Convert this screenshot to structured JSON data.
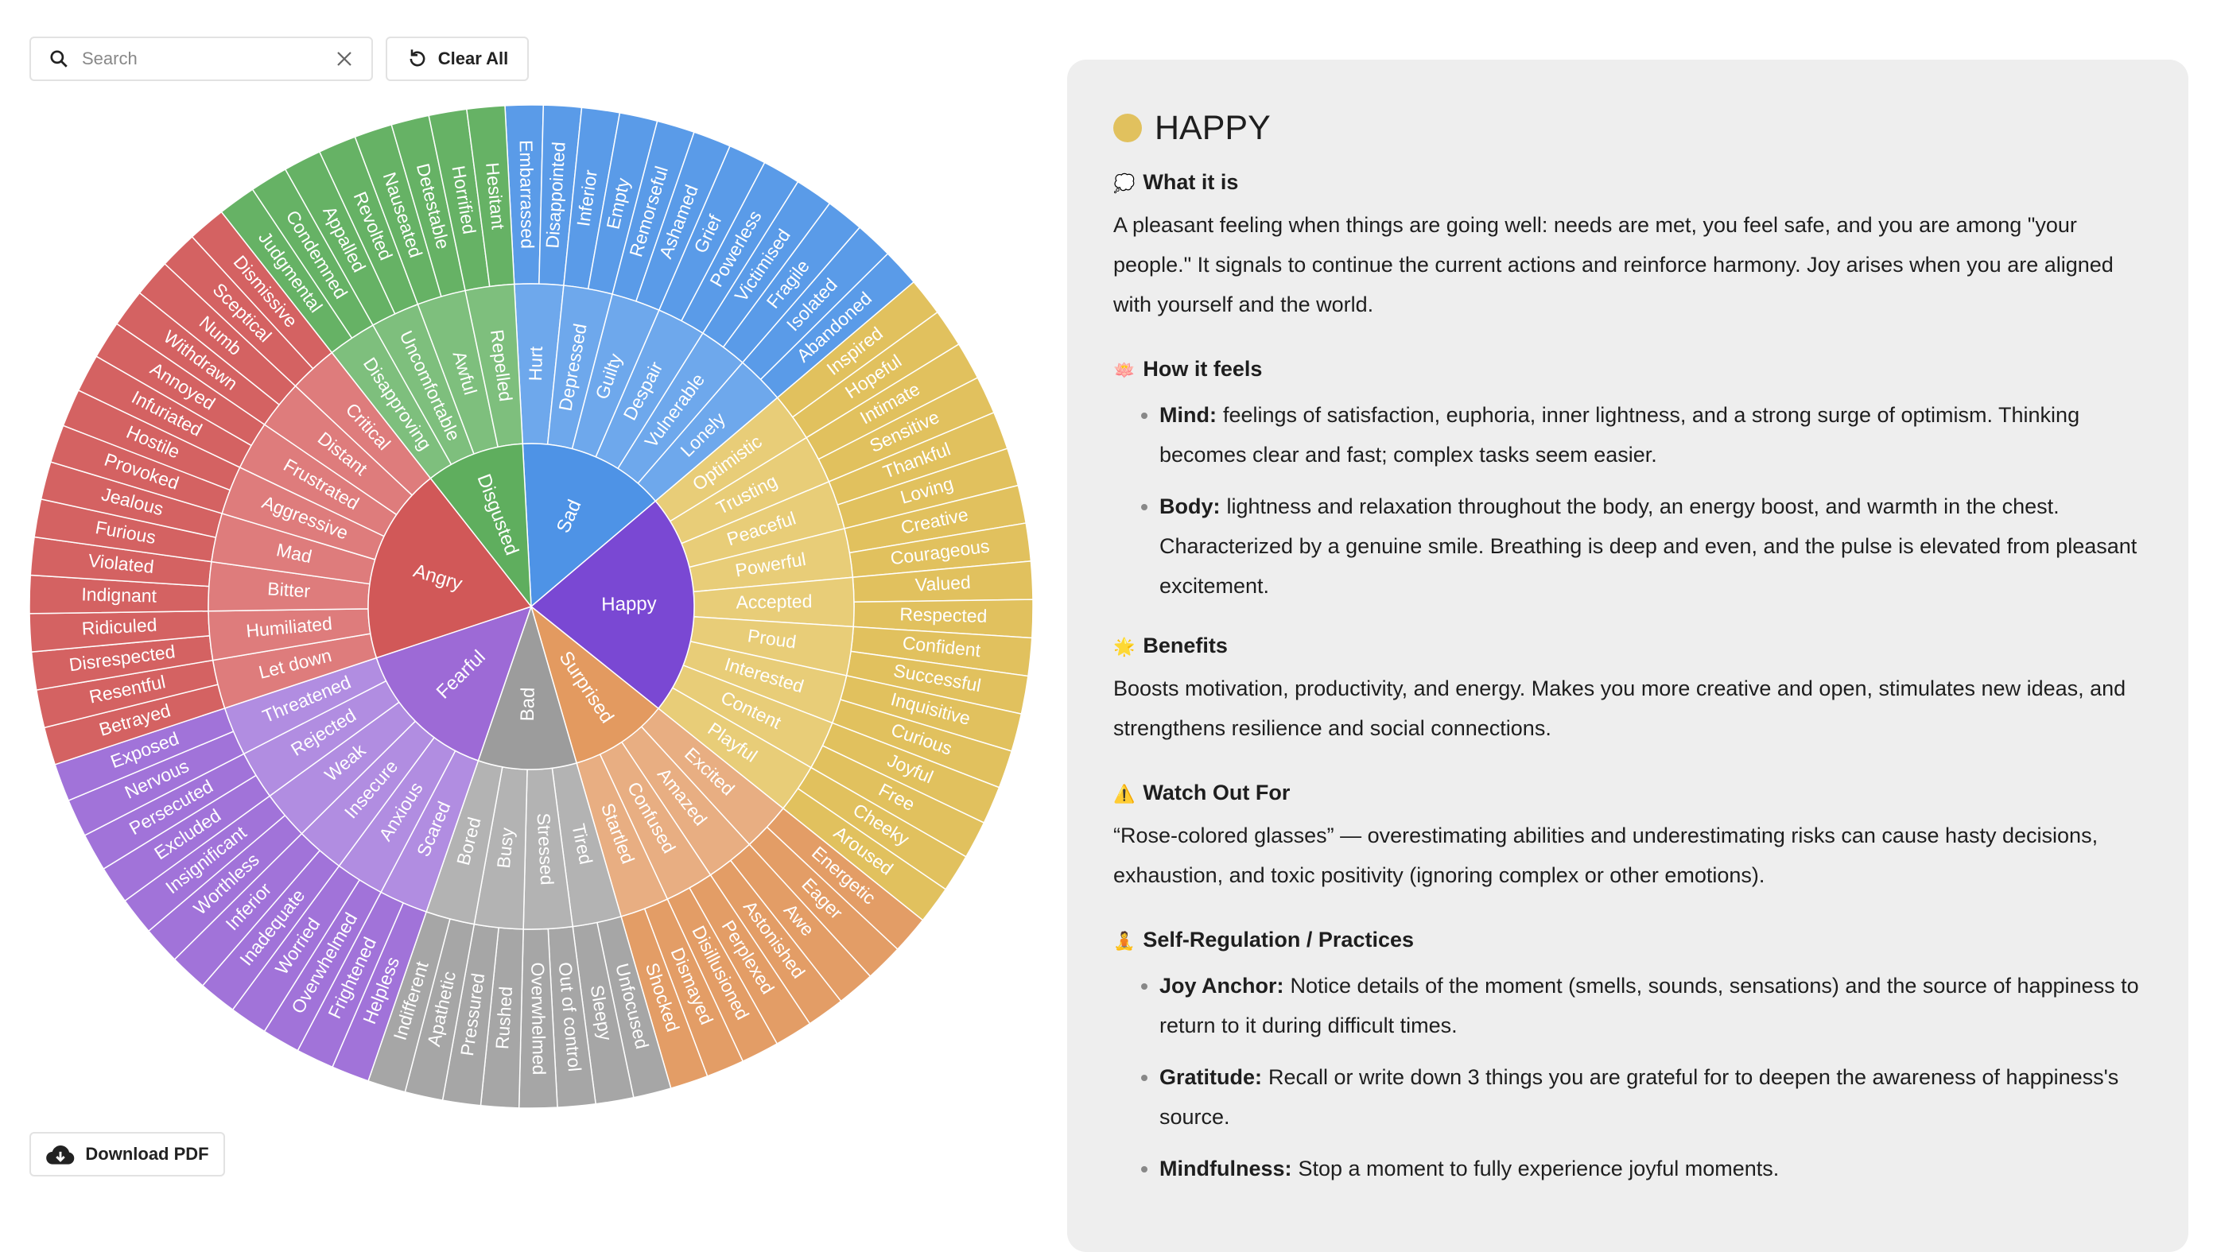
{
  "toolbar": {
    "search_placeholder": "Search",
    "clear_button": "Clear All"
  },
  "download_button": "Download PDF",
  "wheel": {
    "categories": [
      {
        "label": "Sad",
        "colors": [
          "#4e93e6",
          "#6ea8ec",
          "#5a9be8"
        ],
        "children": [
          {
            "label": "Hurt",
            "children": [
              "Embarrassed",
              "Disappointed"
            ]
          },
          {
            "label": "Depressed",
            "children": [
              "Inferior",
              "Empty"
            ]
          },
          {
            "label": "Guilty",
            "children": [
              "Remorseful",
              "Ashamed"
            ]
          },
          {
            "label": "Despair",
            "children": [
              "Grief",
              "Powerless"
            ]
          },
          {
            "label": "Vulnerable",
            "children": [
              "Victimised",
              "Fragile"
            ]
          },
          {
            "label": "Lonely",
            "children": [
              "Isolated",
              "Abandoned"
            ]
          }
        ]
      },
      {
        "label": "Happy",
        "colors": [
          "#7a48d3",
          "#e8cd78",
          "#e1c15e"
        ],
        "children": [
          {
            "label": "Optimistic",
            "children": [
              "Inspired",
              "Hopeful"
            ]
          },
          {
            "label": "Trusting",
            "children": [
              "Intimate",
              "Sensitive"
            ]
          },
          {
            "label": "Peaceful",
            "children": [
              "Thankful",
              "Loving"
            ]
          },
          {
            "label": "Powerful",
            "children": [
              "Creative",
              "Courageous"
            ]
          },
          {
            "label": "Accepted",
            "children": [
              "Valued",
              "Respected"
            ]
          },
          {
            "label": "Proud",
            "children": [
              "Confident",
              "Successful"
            ]
          },
          {
            "label": "Interested",
            "children": [
              "Inquisitive",
              "Curious"
            ]
          },
          {
            "label": "Content",
            "children": [
              "Joyful",
              "Free"
            ]
          },
          {
            "label": "Playful",
            "children": [
              "Cheeky",
              "Aroused"
            ]
          }
        ]
      },
      {
        "label": "Surprised",
        "colors": [
          "#e39a60",
          "#e8ae82",
          "#e39d66"
        ],
        "children": [
          {
            "label": "Excited",
            "children": [
              "Energetic",
              "Eager"
            ]
          },
          {
            "label": "Amazed",
            "children": [
              "Awe",
              "Astonished"
            ]
          },
          {
            "label": "Confused",
            "children": [
              "Perplexed",
              "Disillusioned"
            ]
          },
          {
            "label": "Startled",
            "children": [
              "Dismayed",
              "Shocked"
            ]
          }
        ]
      },
      {
        "label": "Bad",
        "colors": [
          "#9c9c9c",
          "#b3b3b3",
          "#a6a6a6"
        ],
        "children": [
          {
            "label": "Tired",
            "children": [
              "Unfocused",
              "Sleepy"
            ]
          },
          {
            "label": "Stressed",
            "children": [
              "Out of control",
              "Overwhelmed"
            ]
          },
          {
            "label": "Busy",
            "children": [
              "Rushed",
              "Pressured"
            ]
          },
          {
            "label": "Bored",
            "children": [
              "Apathetic",
              "Indifferent"
            ]
          }
        ]
      },
      {
        "label": "Fearful",
        "colors": [
          "#9d6ad6",
          "#b18de1",
          "#a173d9"
        ],
        "children": [
          {
            "label": "Scared",
            "children": [
              "Helpless",
              "Frightened"
            ]
          },
          {
            "label": "Anxious",
            "children": [
              "Overwhelmed",
              "Worried"
            ]
          },
          {
            "label": "Insecure",
            "children": [
              "Inadequate",
              "Inferior"
            ]
          },
          {
            "label": "Weak",
            "children": [
              "Worthless",
              "Insignificant"
            ]
          },
          {
            "label": "Rejected",
            "children": [
              "Excluded",
              "Persecuted"
            ]
          },
          {
            "label": "Threatened",
            "children": [
              "Nervous",
              "Exposed"
            ]
          }
        ]
      },
      {
        "label": "Angry",
        "colors": [
          "#d15858",
          "#de7c7c",
          "#d46262"
        ],
        "children": [
          {
            "label": "Let down",
            "children": [
              "Betrayed",
              "Resentful"
            ]
          },
          {
            "label": "Humiliated",
            "children": [
              "Disrespected",
              "Ridiculed"
            ]
          },
          {
            "label": "Bitter",
            "children": [
              "Indignant",
              "Violated"
            ]
          },
          {
            "label": "Mad",
            "children": [
              "Furious",
              "Jealous"
            ]
          },
          {
            "label": "Aggressive",
            "children": [
              "Provoked",
              "Hostile"
            ]
          },
          {
            "label": "Frustrated",
            "children": [
              "Infuriated",
              "Annoyed"
            ]
          },
          {
            "label": "Distant",
            "children": [
              "Withdrawn",
              "Numb"
            ]
          },
          {
            "label": "Critical",
            "children": [
              "Sceptical",
              "Dismissive"
            ]
          }
        ]
      },
      {
        "label": "Disgusted",
        "colors": [
          "#5fae5e",
          "#7ebf7d",
          "#66b265"
        ],
        "children": [
          {
            "label": "Disapproving",
            "children": [
              "Judgmental",
              "Condemned"
            ]
          },
          {
            "label": "Uncomfortable",
            "children": [
              "Appalled",
              "Revolted"
            ]
          },
          {
            "label": "Awful",
            "children": [
              "Nauseated",
              "Detestable"
            ]
          },
          {
            "label": "Repelled",
            "children": [
              "Horrified",
              "Hesitant"
            ]
          }
        ]
      }
    ]
  },
  "detail": {
    "title": "HAPPY",
    "sections": [
      {
        "icon": "💭",
        "heading": "What it is",
        "text": "A pleasant feeling when things are going well: needs are met, you feel safe, and you are among \"your people.\" It signals to continue the current actions and reinforce harmony. Joy arises when you are aligned with yourself and the world."
      },
      {
        "icon": "🪷",
        "heading": "How it feels",
        "items": [
          {
            "label": "Mind:",
            "text": "feelings of satisfaction, euphoria, inner lightness, and a strong surge of optimism. Thinking becomes clear and fast; complex tasks seem easier."
          },
          {
            "label": "Body:",
            "text": "lightness and relaxation throughout the body, an energy boost, and warmth in the chest. Characterized by a genuine smile. Breathing is deep and even, and the pulse is elevated from pleasant excitement."
          }
        ]
      },
      {
        "icon": "🌟",
        "heading": "Benefits",
        "text": "Boosts motivation, productivity, and energy. Makes you more creative and open, stimulates new ideas, and strengthens resilience and social connections."
      },
      {
        "icon": "⚠️",
        "heading": "Watch Out For",
        "text": "“Rose-colored glasses” — overestimating abilities and underestimating risks can cause hasty decisions, exhaustion, and toxic positivity (ignoring complex or other emotions)."
      },
      {
        "icon": "🧘",
        "heading": "Self-Regulation / Practices",
        "items": [
          {
            "label": "Joy Anchor:",
            "text": "Notice details of the moment (smells, sounds, sensations) and the source of happiness to return to it during difficult times."
          },
          {
            "label": "Gratitude:",
            "text": "Recall or write down 3 things you are grateful for to deepen the awareness of happiness's source."
          },
          {
            "label": "Mindfulness:",
            "text": "Stop a moment to fully experience joyful moments."
          }
        ]
      }
    ]
  }
}
